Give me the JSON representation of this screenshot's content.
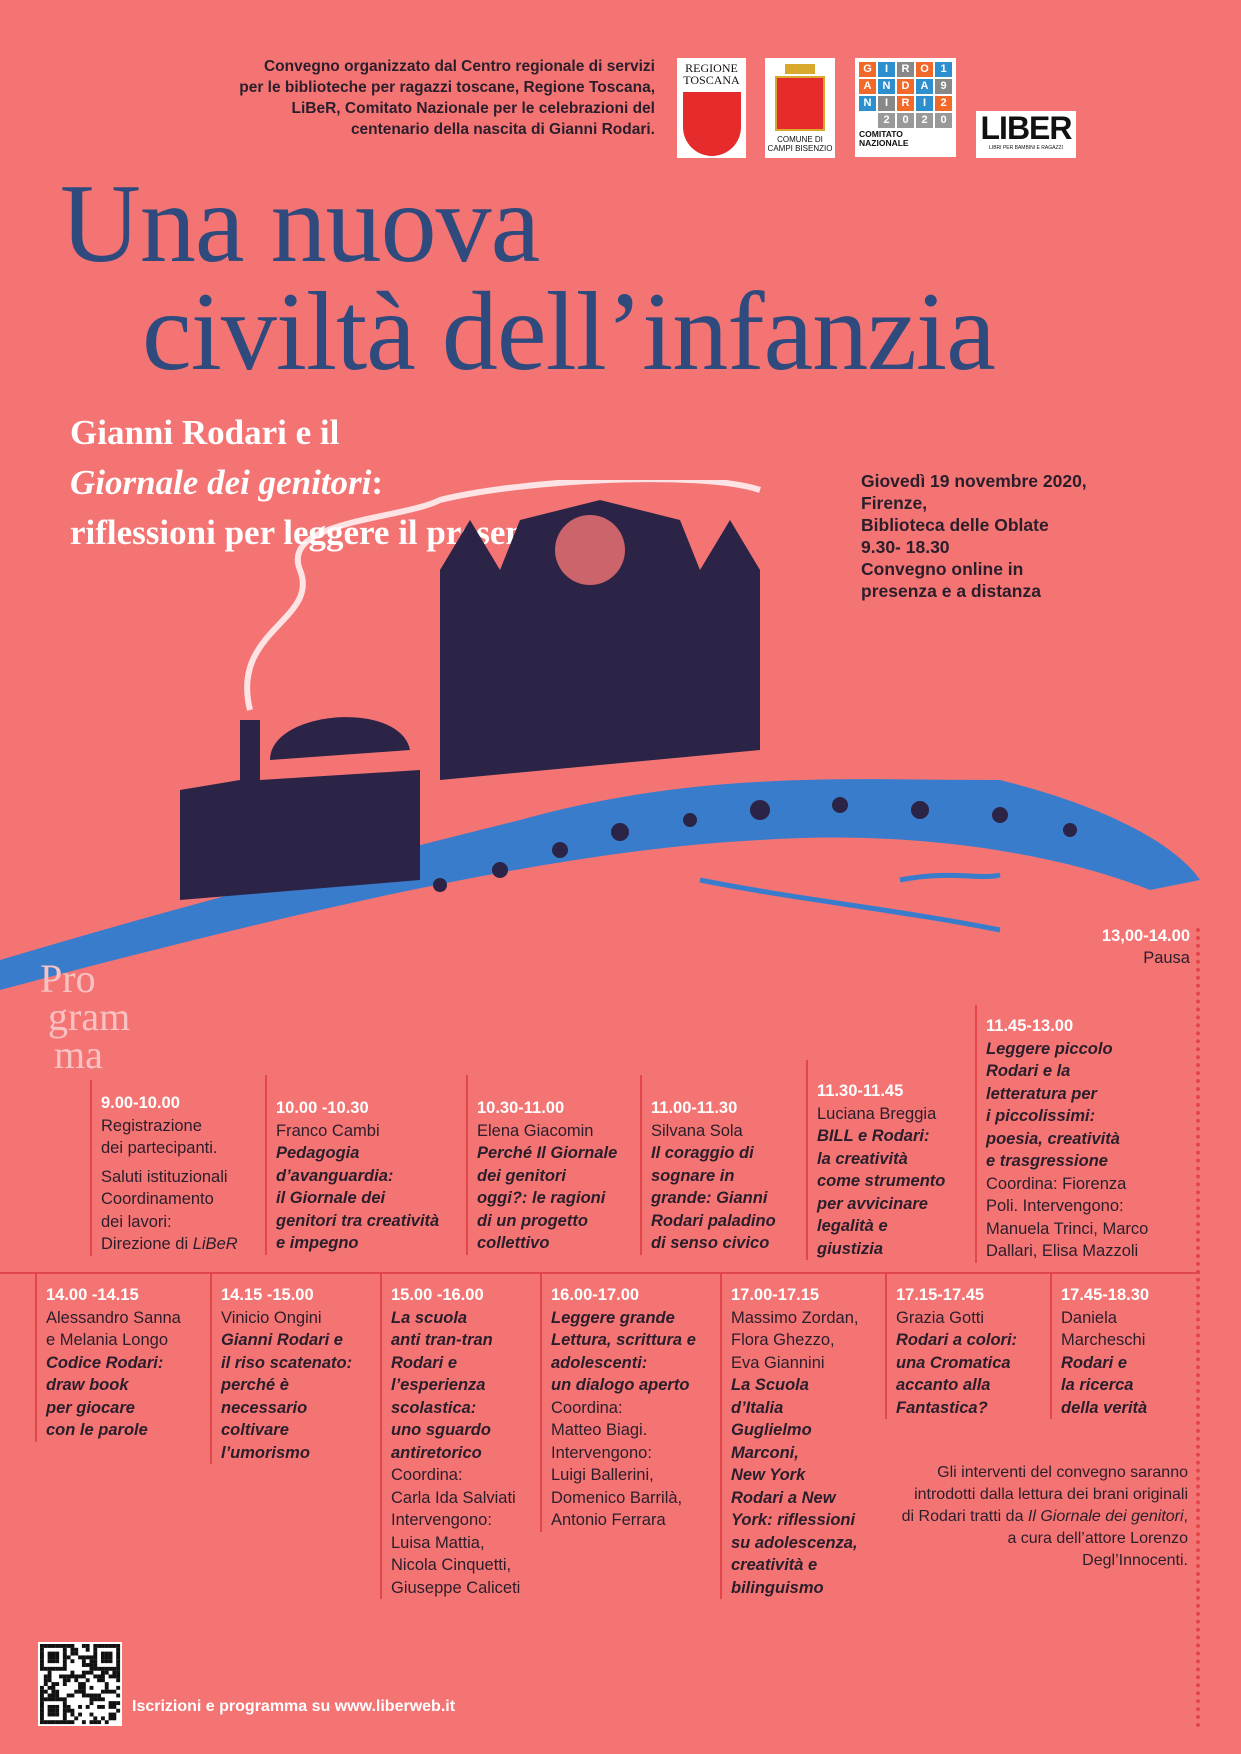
{
  "header": {
    "organizer": [
      "Convegno organizzato dal Centro regionale di servizi",
      "per le biblioteche per ragazzi toscane, Regione Toscana,",
      "LiBeR, Comitato Nazionale per le celebrazioni del",
      "centenario della nascita di Gianni Rodari."
    ],
    "logos": {
      "regione": [
        "REGIONE",
        "TOSCANA"
      ],
      "comune": [
        "COMUNE DI",
        "CAMPI BISENZIO"
      ],
      "giro": [
        "G",
        "I",
        "R",
        "O",
        "1",
        "A",
        "N",
        "D",
        "A",
        "9",
        "N",
        "I",
        "R",
        "I",
        "2",
        "",
        "2",
        "0",
        "2",
        "0"
      ],
      "comitato": [
        "COMITATO",
        "NAZIONALE"
      ],
      "liber": "LIBER",
      "liber_sub": "LIBRI PER BAMBINI E RAGAZZI"
    }
  },
  "title": {
    "line1": "Una nuova",
    "line2": "civiltà dell’infanzia",
    "color": "#2f4a7d"
  },
  "subtitle": {
    "line1": "Gianni Rodari e il",
    "line2_italic": "Giornale dei genitori",
    "line2_rest": ":",
    "line3": "riflessioni per leggere il presente"
  },
  "event": [
    "Giovedì 19 novembre 2020,",
    "Firenze,",
    "Biblioteca delle Oblate",
    "9.30- 18.30",
    "Convegno online in",
    "presenza e a distanza"
  ],
  "programma": [
    "Pro",
    "gram",
    "ma"
  ],
  "sessions_row1": [
    {
      "time": "9.00-10.00",
      "lines": [
        "Registrazione",
        "dei partecipanti."
      ],
      "extra": [
        "Saluti istituzionali",
        "Coordinamento",
        "dei lavori:",
        "Direzione di "
      ],
      "extra_italic": "LiBeR"
    },
    {
      "time": "10.00 -10.30",
      "speaker": "Franco Cambi",
      "title": [
        "Pedagogia",
        "d’avanguardia:",
        "il Giornale dei",
        "genitori tra creatività",
        "e impegno"
      ]
    },
    {
      "time": "10.30-11.00",
      "speaker": "Elena Giacomin",
      "title": [
        "Perché Il Giornale",
        "dei genitori",
        "oggi?: le ragioni",
        "di un progetto",
        "collettivo"
      ]
    },
    {
      "time": "11.00-11.30",
      "speaker": "Silvana Sola",
      "title": [
        "Il coraggio di",
        "sognare in",
        "grande: Gianni",
        "Rodari paladino",
        "di senso civico"
      ]
    },
    {
      "time": "11.30-11.45",
      "speaker": "Luciana Breggia",
      "title": [
        "BILL e Rodari:",
        "la creatività",
        "come strumento",
        "per avvicinare",
        "legalità e",
        "giustizia"
      ]
    },
    {
      "time": "11.45-13.00",
      "title": [
        "Leggere piccolo",
        "Rodari e la",
        "letteratura per",
        "i piccolissimi:",
        "poesia, creatività",
        "e trasgressione"
      ],
      "after": [
        "Coordina: Fiorenza",
        "Poli. Intervengono:",
        "Manuela Trinci, Marco",
        "Dallari, Elisa Mazzoli"
      ]
    }
  ],
  "pause": {
    "time": "13,00-14.00",
    "label": "Pausa"
  },
  "sessions_row2": [
    {
      "time": "14.00 -14.15",
      "speaker": [
        "Alessandro Sanna",
        "e Melania Longo"
      ],
      "title": [
        "Codice Rodari:",
        "draw book",
        "per giocare",
        "con le parole"
      ]
    },
    {
      "time": "14.15 -15.00",
      "speaker": [
        "Vinicio Ongini"
      ],
      "title": [
        "Gianni Rodari e",
        "il riso scatenato:",
        "perché è",
        "necessario",
        "coltivare",
        "l’umorismo"
      ]
    },
    {
      "time": "15.00 -16.00",
      "title": [
        "La scuola",
        "anti tran-tran",
        "Rodari e",
        "l’esperienza",
        "scolastica:",
        "uno sguardo",
        "antiretorico"
      ],
      "after": [
        "Coordina:",
        "Carla Ida Salviati",
        "Intervengono:",
        "Luisa Mattia,",
        "Nicola Cinquetti,",
        "Giuseppe Caliceti"
      ]
    },
    {
      "time": "16.00-17.00",
      "title": [
        "Leggere grande",
        "Lettura, scrittura e",
        "adolescenti:",
        "un dialogo aperto"
      ],
      "after": [
        "Coordina:",
        "Matteo Biagi.",
        "Intervengono:",
        "Luigi Ballerini,",
        "Domenico Barrilà,",
        "Antonio Ferrara"
      ]
    },
    {
      "time": "17.00-17.15",
      "speaker": [
        "Massimo Zordan,",
        "Flora Ghezzo,",
        "Eva Giannini"
      ],
      "title": [
        "La Scuola",
        "d’Italia",
        "Guglielmo",
        "Marconi,",
        "New York",
        "Rodari a New",
        "York: riflessioni",
        "su adolescenza,",
        "creatività e",
        "bilinguismo"
      ]
    },
    {
      "time": "17.15-17.45",
      "speaker": [
        "Grazia Gotti"
      ],
      "title": [
        "Rodari a colori:",
        "una Cromatica",
        "accanto alla",
        "Fantastica?"
      ]
    },
    {
      "time": "17.45-18.30",
      "speaker": [
        "Daniela",
        "Marcheschi"
      ],
      "title": [
        "Rodari e",
        "la ricerca",
        "della verità"
      ]
    }
  ],
  "note": {
    "p1": "Gli interventi del convegno saranno introdotti dalla lettura dei brani originali di Rodari tratti da ",
    "italic": "Il Giornale dei genitori",
    "p2": ", a cura dell’attore Lorenzo Degl’Innocenti."
  },
  "footer": {
    "registration": "Iscrizioni e programma su www.liberweb.it"
  },
  "colors": {
    "background": "#f47474",
    "accent_red": "#e0464a",
    "illustration_blue": "#3a7ccc",
    "illustration_dark": "#2b2446"
  }
}
